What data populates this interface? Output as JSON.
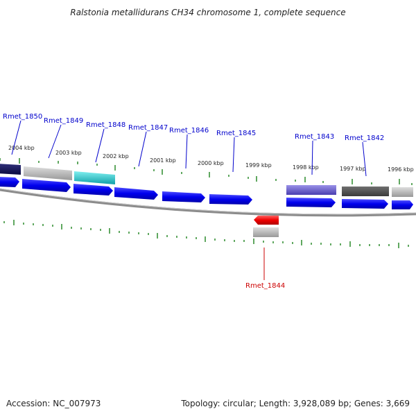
{
  "title": "Ralstonia metallidurans CH34 chromosome 1, complete sequence",
  "footer": {
    "accession": "Accession: NC_007973",
    "summary": "Topology: circular; Length: 3,928,089 bp; Genes: 3,669"
  },
  "tick_labels": [
    "2004 kbp",
    "2003 kbp",
    "2002 kbp",
    "2001 kbp",
    "2000 kbp",
    "1999 kbp",
    "1998 kbp",
    "1997 kbp",
    "1996 kbp"
  ],
  "gene_labels": [
    "Rmet_1850",
    "Rmet_1849",
    "Rmet_1848",
    "Rmet_1847",
    "Rmet_1846",
    "Rmet_1845",
    "Rmet_1843",
    "Rmet_1842",
    "Rmet_1844"
  ],
  "colors": {
    "forward_gene": "#0000ee",
    "reverse_gene": "#ee0000",
    "label_forward": "#0000cc",
    "label_reverse": "#cc0000",
    "tick": "#2a8a2a",
    "backbone": "#888888"
  }
}
